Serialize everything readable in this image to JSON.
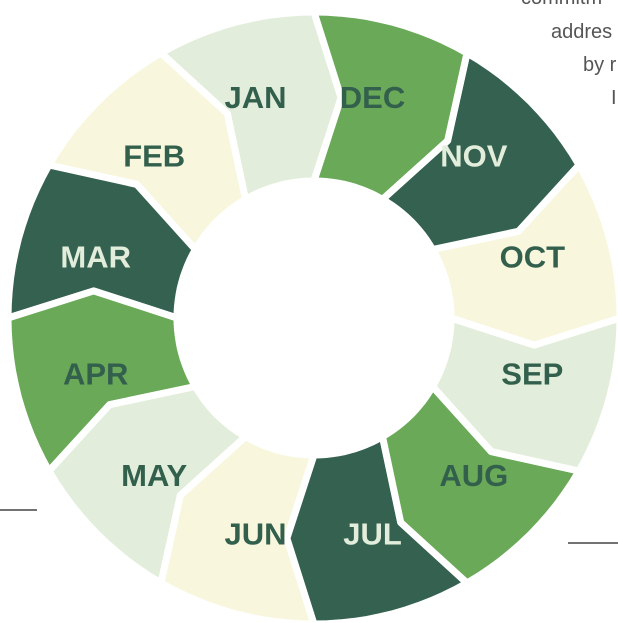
{
  "side_text": [
    "commitm",
    "addres",
    "by r",
    "I"
  ],
  "months": [
    {
      "label": "JAN",
      "color": "#e2eedb",
      "text_color": "#33604d"
    },
    {
      "label": "FEB",
      "color": "#f8f6dd",
      "text_color": "#33604d"
    },
    {
      "label": "MAR",
      "color": "#356150",
      "text_color": "#e2eedb"
    },
    {
      "label": "APR",
      "color": "#6aa958",
      "text_color": "#33604d"
    },
    {
      "label": "MAY",
      "color": "#e2eedb",
      "text_color": "#33604d"
    },
    {
      "label": "JUN",
      "color": "#f8f6dd",
      "text_color": "#33604d"
    },
    {
      "label": "JUL",
      "color": "#356150",
      "text_color": "#e2eedb"
    },
    {
      "label": "AUG",
      "color": "#6aa958",
      "text_color": "#33604d"
    },
    {
      "label": "SEP",
      "color": "#e2eedb",
      "text_color": "#33604d"
    },
    {
      "label": "OCT",
      "color": "#f8f6dd",
      "text_color": "#33604d"
    },
    {
      "label": "NOV",
      "color": "#356150",
      "text_color": "#e2eedb"
    },
    {
      "label": "DEC",
      "color": "#6aa958",
      "text_color": "#33604d"
    }
  ]
}
